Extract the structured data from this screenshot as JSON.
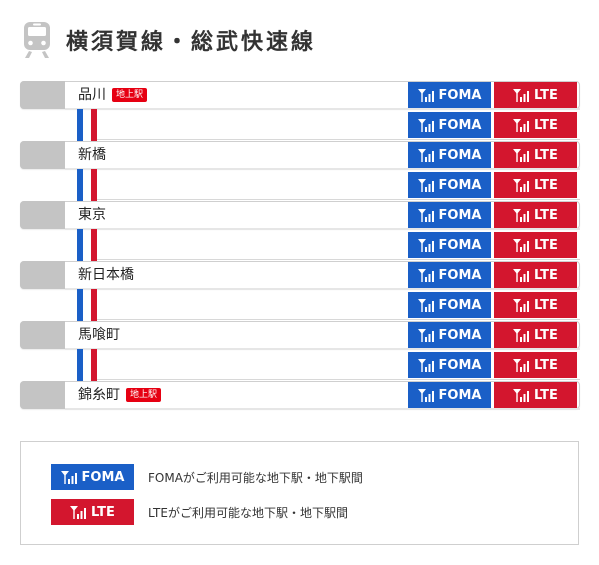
{
  "title": "横須賀線・総武快速線",
  "colors": {
    "foma": "#1a5fc7",
    "lte": "#d3162e",
    "badge": "#e60012"
  },
  "rows": [
    {
      "type": "station",
      "name": "品川",
      "badge": "地上駅",
      "foma": "FOMA",
      "lte": "LTE"
    },
    {
      "type": "gap",
      "foma": "FOMA",
      "lte": "LTE"
    },
    {
      "type": "station",
      "name": "新橋",
      "foma": "FOMA",
      "lte": "LTE"
    },
    {
      "type": "gap",
      "foma": "FOMA",
      "lte": "LTE"
    },
    {
      "type": "station",
      "name": "東京",
      "foma": "FOMA",
      "lte": "LTE"
    },
    {
      "type": "gap",
      "foma": "FOMA",
      "lte": "LTE"
    },
    {
      "type": "station",
      "name": "新日本橋",
      "foma": "FOMA",
      "lte": "LTE"
    },
    {
      "type": "gap",
      "foma": "FOMA",
      "lte": "LTE"
    },
    {
      "type": "station",
      "name": "馬喰町",
      "foma": "FOMA",
      "lte": "LTE"
    },
    {
      "type": "gap",
      "foma": "FOMA",
      "lte": "LTE"
    },
    {
      "type": "station",
      "name": "錦糸町",
      "badge": "地上駅",
      "foma": "FOMA",
      "lte": "LTE"
    }
  ],
  "legend": {
    "foma": {
      "label": "FOMA",
      "text": "FOMAがご利用可能な地下駅・地下駅間"
    },
    "lte": {
      "label": "LTE",
      "text": "LTEがご利用可能な地下駅・地下駅間"
    }
  }
}
